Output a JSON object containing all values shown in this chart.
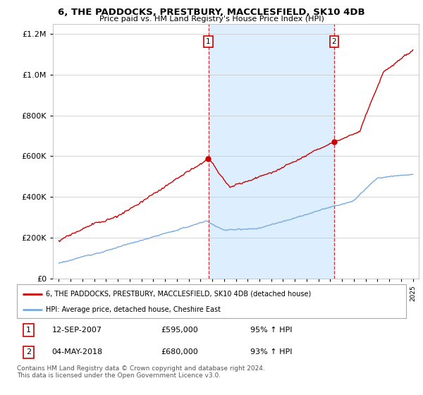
{
  "title": "6, THE PADDOCKS, PRESTBURY, MACCLESFIELD, SK10 4DB",
  "subtitle": "Price paid vs. HM Land Registry's House Price Index (HPI)",
  "legend_line1": "6, THE PADDOCKS, PRESTBURY, MACCLESFIELD, SK10 4DB (detached house)",
  "legend_line2": "HPI: Average price, detached house, Cheshire East",
  "sale1_label": "1",
  "sale1_date": "12-SEP-2007",
  "sale1_price": "£595,000",
  "sale1_pct": "95% ↑ HPI",
  "sale2_label": "2",
  "sale2_date": "04-MAY-2018",
  "sale2_price": "£680,000",
  "sale2_pct": "93% ↑ HPI",
  "footer": "Contains HM Land Registry data © Crown copyright and database right 2024.\nThis data is licensed under the Open Government Licence v3.0.",
  "red_color": "#cc0000",
  "blue_color": "#7aaadd",
  "shaded_color": "#ddeeff",
  "background_color": "#ffffff",
  "sale1_x": 2007.7,
  "sale2_x": 2018.35,
  "ylim_max": 1250000,
  "xlim_min": 1994.5,
  "xlim_max": 2025.5
}
